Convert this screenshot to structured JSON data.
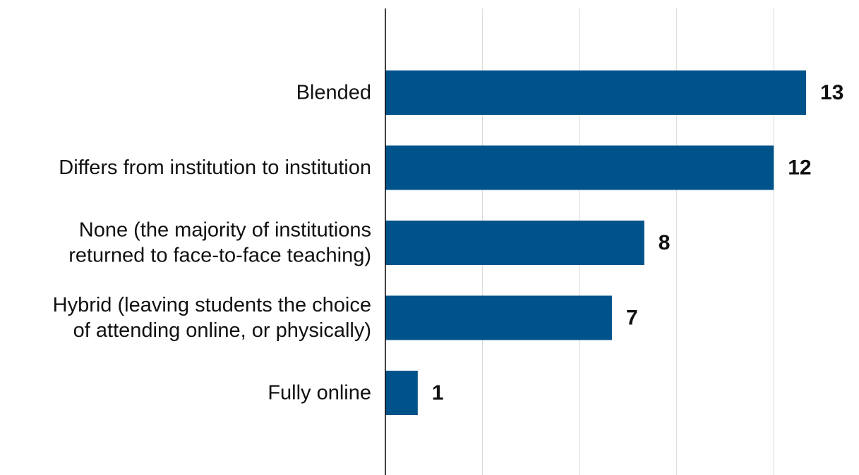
{
  "chart_data": {
    "type": "bar",
    "orientation": "horizontal",
    "categories": [
      [
        "Blended"
      ],
      [
        "Differs from institution to institution"
      ],
      [
        "None (the majority of institutions",
        "returned to face-to-face teaching)"
      ],
      [
        "Hybrid (leaving students the choice",
        "of attending online, or physically)"
      ],
      [
        "Fully online"
      ]
    ],
    "values": [
      13,
      12,
      8,
      7,
      1
    ],
    "value_labels": [
      "13",
      "12",
      "8",
      "7",
      "1"
    ],
    "xlim": [
      0,
      14
    ],
    "grid": "vertical",
    "bar_color": "#00538a",
    "grid_color": "#d9d9d9",
    "axis_color": "#000000",
    "title": "",
    "xlabel": "",
    "ylabel": ""
  }
}
